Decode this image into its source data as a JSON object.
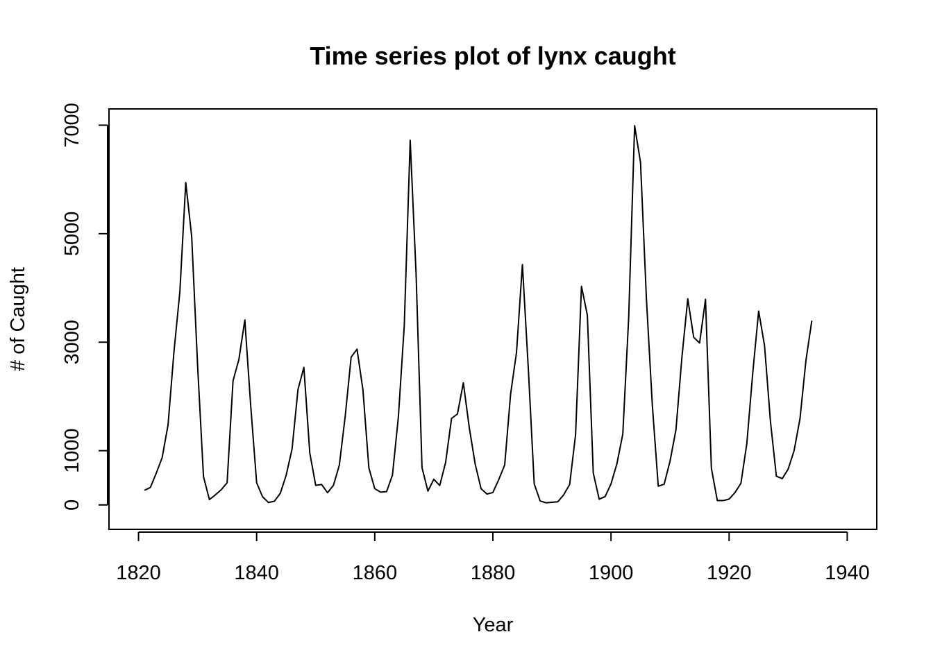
{
  "chart_data": {
    "type": "line",
    "title": "Time series plot of lynx caught",
    "xlabel": "Year",
    "ylabel": "# of Caught",
    "xlim": [
      1815,
      1945
    ],
    "ylim": [
      -450,
      7300
    ],
    "xticks": [
      1820,
      1840,
      1860,
      1880,
      1900,
      1920,
      1940
    ],
    "xtick_labels": [
      "1820",
      "1840",
      "1860",
      "1880",
      "1900",
      "1920",
      "1940"
    ],
    "yticks": [
      0,
      1000,
      3000,
      5000,
      7000
    ],
    "ytick_labels": [
      "0",
      "1000",
      "3000",
      "5000",
      "7000"
    ],
    "grid": false,
    "series": [
      {
        "color": "#000000",
        "x": [
          1821,
          1822,
          1823,
          1824,
          1825,
          1826,
          1827,
          1828,
          1829,
          1830,
          1831,
          1832,
          1833,
          1834,
          1835,
          1836,
          1837,
          1838,
          1839,
          1840,
          1841,
          1842,
          1843,
          1844,
          1845,
          1846,
          1847,
          1848,
          1849,
          1850,
          1851,
          1852,
          1853,
          1854,
          1855,
          1856,
          1857,
          1858,
          1859,
          1860,
          1861,
          1862,
          1863,
          1864,
          1865,
          1866,
          1867,
          1868,
          1869,
          1870,
          1871,
          1872,
          1873,
          1874,
          1875,
          1876,
          1877,
          1878,
          1879,
          1880,
          1881,
          1882,
          1883,
          1884,
          1885,
          1886,
          1887,
          1888,
          1889,
          1890,
          1891,
          1892,
          1893,
          1894,
          1895,
          1896,
          1897,
          1898,
          1899,
          1900,
          1901,
          1902,
          1903,
          1904,
          1905,
          1906,
          1907,
          1908,
          1909,
          1910,
          1911,
          1912,
          1913,
          1914,
          1915,
          1916,
          1917,
          1918,
          1919,
          1920,
          1921,
          1922,
          1923,
          1924,
          1925,
          1926,
          1927,
          1928,
          1929,
          1930,
          1931,
          1932,
          1933,
          1934
        ],
        "values": [
          269,
          321,
          585,
          871,
          1475,
          2821,
          3928,
          5943,
          4950,
          2577,
          523,
          98,
          184,
          279,
          409,
          2285,
          2685,
          3409,
          1824,
          409,
          151,
          45,
          68,
          213,
          546,
          1033,
          2129,
          2536,
          957,
          361,
          377,
          225,
          360,
          731,
          1638,
          2725,
          2871,
          2119,
          684,
          299,
          236,
          245,
          552,
          1623,
          3311,
          6721,
          4254,
          687,
          255,
          473,
          358,
          784,
          1594,
          1676,
          2251,
          1426,
          756,
          299,
          201,
          229,
          469,
          736,
          2042,
          2811,
          4431,
          2511,
          389,
          73,
          39,
          49,
          59,
          188,
          377,
          1292,
          4031,
          3495,
          587,
          105,
          153,
          387,
          758,
          1307,
          3465,
          6991,
          6313,
          3794,
          1836,
          345,
          382,
          808,
          1388,
          2713,
          3800,
          3091,
          2985,
          3790,
          674,
          81,
          80,
          108,
          229,
          399,
          1132,
          2432,
          3574,
          2935,
          1537,
          529,
          485,
          662,
          1000,
          1590,
          2657,
          3396
        ]
      }
    ]
  }
}
